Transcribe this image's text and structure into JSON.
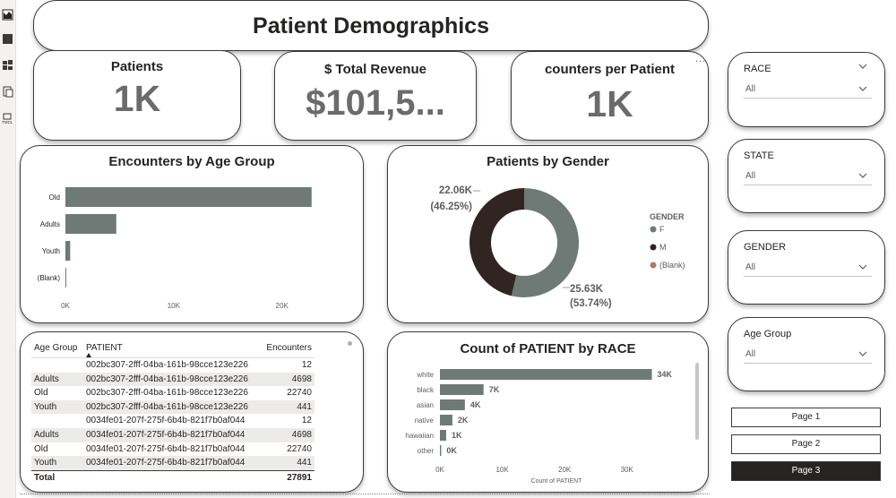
{
  "title": "Patient Demographics",
  "kpis": [
    {
      "label": "Patients",
      "value": "1K"
    },
    {
      "label": "$ Total Revenue",
      "value": "$101,5..."
    },
    {
      "label": "counters per Patient",
      "value": "1K"
    }
  ],
  "colors": {
    "bar": "#6f7a76",
    "donut_m": "#312524",
    "donut_f": "#6f7a76",
    "blank": "#a6806a",
    "dark_button": "#252423"
  },
  "icons": [
    "report-view-icon",
    "data-view-icon",
    "model-view-icon",
    "dax-query-icon",
    "tmdl-view-icon"
  ],
  "chart_age": {
    "title": "Encounters by Age Group",
    "type": "bar",
    "categories": [
      "Old",
      "Adults",
      "Youth",
      "(Blank)"
    ],
    "values": [
      22740,
      4698,
      441,
      24
    ],
    "ticks": [
      "0K",
      "10K",
      "20K"
    ],
    "xlim": [
      0,
      24000
    ]
  },
  "chart_gender": {
    "title": "Patients by Gender",
    "type": "pie",
    "legend_title": "GENDER",
    "legend": [
      "F",
      "M",
      "(Blank)"
    ],
    "slices": [
      {
        "name": "F",
        "value": 25.63,
        "label": "25.63K",
        "pct": "(53.74%)"
      },
      {
        "name": "M",
        "value": 22.06,
        "label": "22.06K",
        "pct": "(46.25%)"
      }
    ]
  },
  "chart_race": {
    "title": "Count of PATIENT by RACE",
    "type": "bar",
    "categories": [
      "white",
      "black",
      "asian",
      "native",
      "hawaiian",
      "other"
    ],
    "values": [
      34000,
      7000,
      4000,
      2000,
      1000,
      200
    ],
    "data_labels": [
      "34K",
      "7K",
      "4K",
      "2K",
      "1K",
      "0K"
    ],
    "ticks": [
      "0K",
      "10K",
      "20K",
      "30K"
    ],
    "xlabel": "Count of PATIENT",
    "xlim": [
      0,
      34500
    ]
  },
  "table": {
    "headers": [
      "Age Group",
      "PATIENT",
      "Encounters"
    ],
    "rows": [
      [
        "",
        "002bc307-2fff-04ba-161b-98cce123e226",
        "12"
      ],
      [
        "Adults",
        "002bc307-2fff-04ba-161b-98cce123e226",
        "4698"
      ],
      [
        "Old",
        "002bc307-2fff-04ba-161b-98cce123e226",
        "22740"
      ],
      [
        "Youth",
        "002bc307-2fff-04ba-161b-98cce123e226",
        "441"
      ],
      [
        "",
        "0034fe01-207f-275f-6b4b-821f7b0af044",
        "12"
      ],
      [
        "Adults",
        "0034fe01-207f-275f-6b4b-821f7b0af044",
        "4698"
      ],
      [
        "Old",
        "0034fe01-207f-275f-6b4b-821f7b0af044",
        "22740"
      ],
      [
        "Youth",
        "0034fe01-207f-275f-6b4b-821f7b0af044",
        "441"
      ]
    ],
    "total_label": "Total",
    "total_value": "27891"
  },
  "slicers": [
    {
      "label": "RACE",
      "value": "All"
    },
    {
      "label": "STATE",
      "value": "All"
    },
    {
      "label": "GENDER",
      "value": "All"
    },
    {
      "label": "Age Group",
      "value": "All"
    }
  ],
  "pages": [
    "Page 1",
    "Page 2",
    "Page 3"
  ],
  "ellipsis": "..."
}
